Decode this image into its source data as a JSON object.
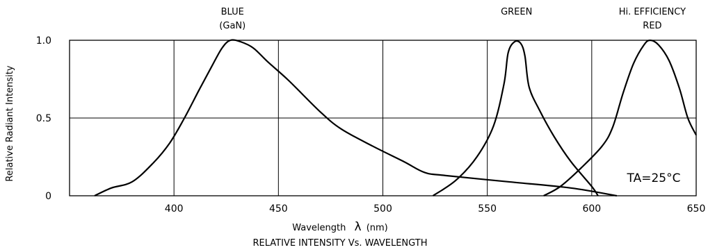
{
  "chart_data": {
    "type": "line",
    "title": "RELATIVE INTENSITY Vs. WAVELENGTH",
    "xlabel": "Wavelength",
    "xlabel_symbol": "λ",
    "xlabel_unit": "(nm)",
    "ylabel": "Relative Radiant Intensity",
    "xlim": [
      350,
      650
    ],
    "ylim": [
      0,
      1.0
    ],
    "x_ticks": [
      400,
      450,
      500,
      550,
      600,
      650
    ],
    "x_tick_labels": [
      "400",
      "450",
      "500",
      "550",
      "600",
      "650"
    ],
    "y_ticks": [
      0,
      0.5,
      1.0
    ],
    "y_tick_labels": [
      "0",
      "0.5",
      "1.0"
    ],
    "grid": true,
    "annotation_condition": "TA=25°C",
    "series": [
      {
        "name": "BLUE (GaN)",
        "label_lines": [
          "BLUE",
          "(GaN)"
        ],
        "label_x": 428,
        "points": [
          [
            362,
            0
          ],
          [
            370,
            0.05
          ],
          [
            380,
            0.09
          ],
          [
            390,
            0.21
          ],
          [
            398,
            0.34
          ],
          [
            405,
            0.5
          ],
          [
            412,
            0.68
          ],
          [
            418,
            0.83
          ],
          [
            423,
            0.95
          ],
          [
            427,
            1.0
          ],
          [
            432,
            0.99
          ],
          [
            438,
            0.95
          ],
          [
            445,
            0.86
          ],
          [
            455,
            0.74
          ],
          [
            470,
            0.54
          ],
          [
            480,
            0.43
          ],
          [
            495,
            0.32
          ],
          [
            510,
            0.22
          ],
          [
            520,
            0.15
          ],
          [
            530,
            0.13
          ],
          [
            560,
            0.09
          ],
          [
            590,
            0.05
          ],
          [
            612,
            0.0
          ]
        ]
      },
      {
        "name": "GREEN",
        "label_lines": [
          "GREEN"
        ],
        "label_x": 564,
        "points": [
          [
            524,
            0
          ],
          [
            535,
            0.1
          ],
          [
            545,
            0.25
          ],
          [
            553,
            0.45
          ],
          [
            558,
            0.72
          ],
          [
            560,
            0.92
          ],
          [
            563,
            0.99
          ],
          [
            566,
            0.98
          ],
          [
            568,
            0.9
          ],
          [
            570,
            0.7
          ],
          [
            575,
            0.55
          ],
          [
            582,
            0.38
          ],
          [
            590,
            0.22
          ],
          [
            600,
            0.06
          ],
          [
            603,
            0.0
          ]
        ]
      },
      {
        "name": "Hi. EFFICIENCY RED",
        "label_lines": [
          "Hi. EFFICIENCY",
          "RED"
        ],
        "label_x": 629,
        "points": [
          [
            577,
            0
          ],
          [
            585,
            0.06
          ],
          [
            595,
            0.18
          ],
          [
            605,
            0.32
          ],
          [
            610,
            0.44
          ],
          [
            615,
            0.66
          ],
          [
            620,
            0.85
          ],
          [
            625,
            0.97
          ],
          [
            628,
            1.0
          ],
          [
            632,
            0.97
          ],
          [
            637,
            0.87
          ],
          [
            642,
            0.69
          ],
          [
            646,
            0.5
          ],
          [
            650,
            0.39
          ]
        ]
      }
    ]
  }
}
